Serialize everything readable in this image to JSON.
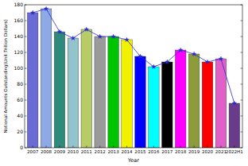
{
  "chart_data": {
    "type": "bar",
    "x_label": "Year",
    "y_label": "Notional Amounts Outstanding(Unit:Trillion Dollars)",
    "categories": [
      "2007",
      "2008",
      "2009",
      "2010",
      "2011",
      "2012",
      "2013",
      "2014",
      "2015",
      "2016",
      "2017",
      "2018",
      "2019",
      "2020",
      "2021",
      "2022H1"
    ],
    "series": [
      {
        "type": "bar",
        "values": [
          170,
          175,
          146,
          138,
          149,
          140,
          140,
          136,
          115,
          102,
          108,
          123,
          118,
          108,
          112,
          56
        ],
        "colors": [
          "#6b6bd6",
          "#8ea9e6",
          "#2e8b7b",
          "#93c3cc",
          "#b7cc66",
          "#9a9a9a",
          "#00c400",
          "#f2f200",
          "#0000ff",
          "#00ffff",
          "#000000",
          "#ff00ff",
          "#8c9c3a",
          "#ff0000",
          "#e060c8",
          "#6a3a8c"
        ]
      },
      {
        "type": "line",
        "values": [
          170,
          175,
          146,
          138,
          149,
          140,
          140,
          136,
          115,
          102,
          108,
          123,
          118,
          108,
          112,
          56
        ],
        "color": "#2a2ad6",
        "marker": "star"
      }
    ],
    "ylim": [
      0,
      180
    ],
    "yticks": [
      0,
      20,
      40,
      60,
      80,
      100,
      120,
      140,
      160,
      180
    ],
    "grid": false
  }
}
